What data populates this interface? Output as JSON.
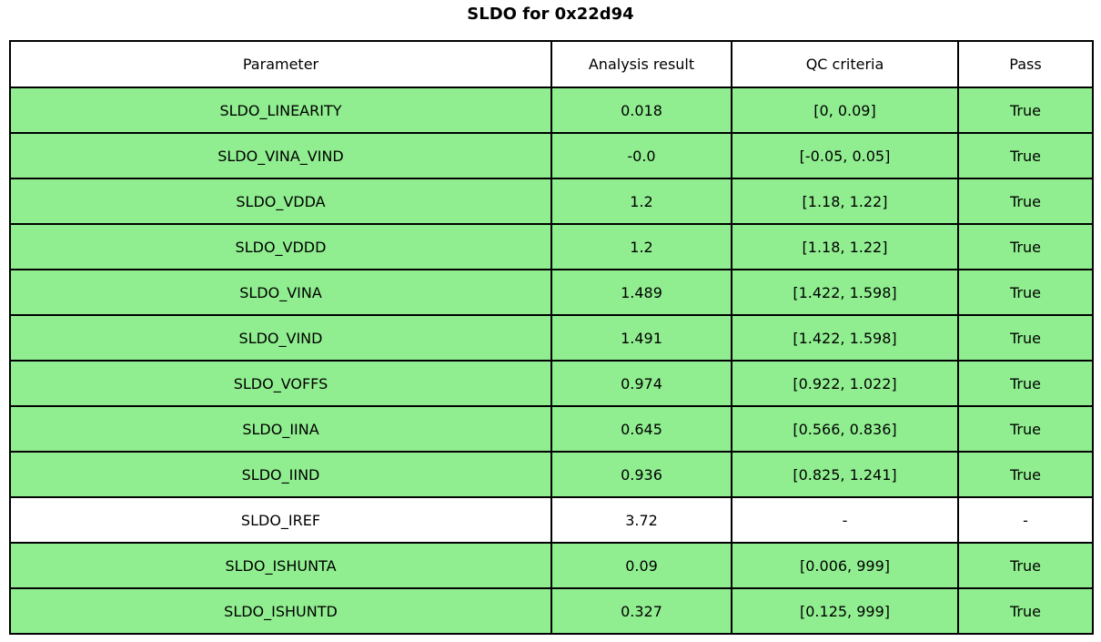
{
  "title": "SLDO for 0x22d94",
  "colors": {
    "row_pass": "#90ee90",
    "row_neutral": "#ffffff",
    "border": "#000000",
    "background": "#ffffff"
  },
  "table": {
    "columns": [
      "Parameter",
      "Analysis result",
      "QC criteria",
      "Pass"
    ],
    "rows": [
      {
        "parameter": "SLDO_LINEARITY",
        "result": "0.018",
        "criteria": "[0, 0.09]",
        "pass": "True",
        "highlight": true
      },
      {
        "parameter": "SLDO_VINA_VIND",
        "result": "-0.0",
        "criteria": "[-0.05, 0.05]",
        "pass": "True",
        "highlight": true
      },
      {
        "parameter": "SLDO_VDDA",
        "result": "1.2",
        "criteria": "[1.18, 1.22]",
        "pass": "True",
        "highlight": true
      },
      {
        "parameter": "SLDO_VDDD",
        "result": "1.2",
        "criteria": "[1.18, 1.22]",
        "pass": "True",
        "highlight": true
      },
      {
        "parameter": "SLDO_VINA",
        "result": "1.489",
        "criteria": "[1.422, 1.598]",
        "pass": "True",
        "highlight": true
      },
      {
        "parameter": "SLDO_VIND",
        "result": "1.491",
        "criteria": "[1.422, 1.598]",
        "pass": "True",
        "highlight": true
      },
      {
        "parameter": "SLDO_VOFFS",
        "result": "0.974",
        "criteria": "[0.922, 1.022]",
        "pass": "True",
        "highlight": true
      },
      {
        "parameter": "SLDO_IINA",
        "result": "0.645",
        "criteria": "[0.566, 0.836]",
        "pass": "True",
        "highlight": true
      },
      {
        "parameter": "SLDO_IIND",
        "result": "0.936",
        "criteria": "[0.825, 1.241]",
        "pass": "True",
        "highlight": true
      },
      {
        "parameter": "SLDO_IREF",
        "result": "3.72",
        "criteria": "-",
        "pass": "-",
        "highlight": false
      },
      {
        "parameter": "SLDO_ISHUNTA",
        "result": "0.09",
        "criteria": "[0.006, 999]",
        "pass": "True",
        "highlight": true
      },
      {
        "parameter": "SLDO_ISHUNTD",
        "result": "0.327",
        "criteria": "[0.125, 999]",
        "pass": "True",
        "highlight": true
      }
    ]
  },
  "chart_data": {
    "type": "table",
    "title": "SLDO for 0x22d94",
    "columns": [
      "Parameter",
      "Analysis result",
      "QC criteria",
      "Pass"
    ],
    "rows": [
      [
        "SLDO_LINEARITY",
        "0.018",
        "[0, 0.09]",
        "True"
      ],
      [
        "SLDO_VINA_VIND",
        "-0.0",
        "[-0.05, 0.05]",
        "True"
      ],
      [
        "SLDO_VDDA",
        "1.2",
        "[1.18, 1.22]",
        "True"
      ],
      [
        "SLDO_VDDD",
        "1.2",
        "[1.18, 1.22]",
        "True"
      ],
      [
        "SLDO_VINA",
        "1.489",
        "[1.422, 1.598]",
        "True"
      ],
      [
        "SLDO_VIND",
        "1.491",
        "[1.422, 1.598]",
        "True"
      ],
      [
        "SLDO_VOFFS",
        "0.974",
        "[0.922, 1.022]",
        "True"
      ],
      [
        "SLDO_IINA",
        "0.645",
        "[0.566, 0.836]",
        "True"
      ],
      [
        "SLDO_IIND",
        "0.936",
        "[0.825, 1.241]",
        "True"
      ],
      [
        "SLDO_IREF",
        "3.72",
        "-",
        "-"
      ],
      [
        "SLDO_ISHUNTA",
        "0.09",
        "[0.006, 999]",
        "True"
      ],
      [
        "SLDO_ISHUNTD",
        "0.327",
        "[0.125, 999]",
        "True"
      ]
    ]
  }
}
